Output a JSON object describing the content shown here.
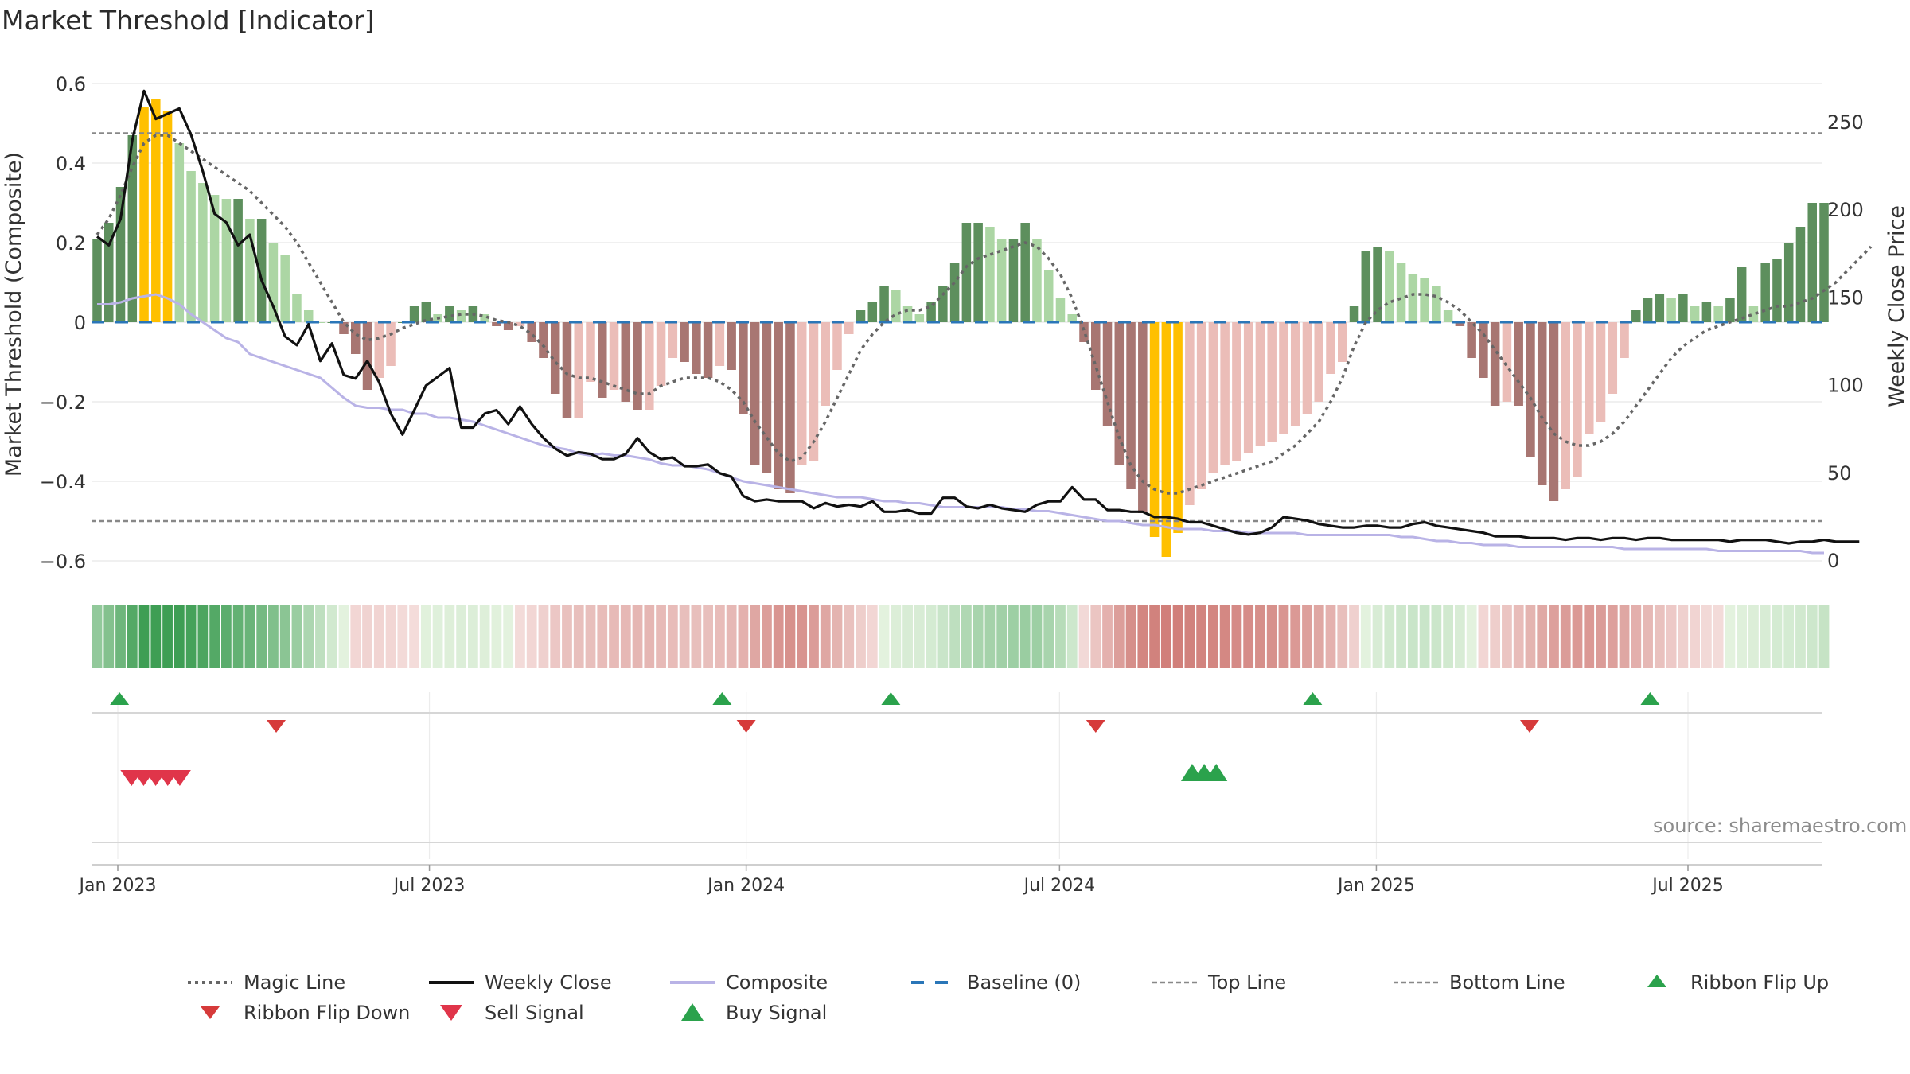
{
  "title": "Market Threshold [Indicator]",
  "source": "source: sharemaestro.com",
  "colors": {
    "magic": "#666666",
    "close": "#111111",
    "composite": "#b9b3e6",
    "baseline": "#2a76b8",
    "threshold": "#888888",
    "extreme": "#ffc000",
    "pos_strong": "#5d8f5d",
    "pos_light": "#acd6a4",
    "neg_strong": "#a87672",
    "neg_light": "#ebbdb8",
    "up_tri": "#2ba24c",
    "down_tri": "#d63a3a",
    "sell": "#e0354a",
    "grid": "#e6e6e6"
  },
  "chart_data": {
    "type": "bar+line",
    "title": "Market Threshold [Indicator]",
    "ylabel": "Market Threshold (Composite)",
    "y2label": "Weekly Close Price",
    "ylim": [
      -0.62,
      0.63
    ],
    "y2lim": [
      0,
      275
    ],
    "yticks": [
      "0.6",
      "0.4",
      "0.2",
      "0",
      "−0.2",
      "−0.4",
      "−0.6"
    ],
    "y2ticks": [
      "250",
      "200",
      "150",
      "100",
      "50",
      "0"
    ],
    "xticks": [
      "Jan 2023",
      "Jul 2023",
      "Jan 2024",
      "Jul 2024",
      "Jan 2025",
      "Jul 2025"
    ],
    "x_start": "2022-12-19",
    "top_line": 0.475,
    "bottom_line": -0.5,
    "baseline": 0,
    "threshold_bars": [
      0.21,
      0.25,
      0.34,
      0.47,
      0.54,
      0.56,
      0.53,
      0.45,
      0.38,
      0.35,
      0.32,
      0.31,
      0.31,
      0.26,
      0.26,
      0.2,
      0.17,
      0.07,
      0.03,
      0,
      0,
      -0.03,
      -0.08,
      -0.17,
      -0.14,
      -0.11,
      0,
      0.04,
      0.05,
      0.02,
      0.04,
      0.03,
      0.04,
      0.02,
      -0.01,
      -0.02,
      -0.01,
      -0.05,
      -0.09,
      -0.18,
      -0.24,
      -0.24,
      -0.15,
      -0.19,
      -0.17,
      -0.2,
      -0.22,
      -0.22,
      -0.16,
      -0.09,
      -0.1,
      -0.13,
      -0.14,
      -0.11,
      -0.12,
      -0.23,
      -0.36,
      -0.38,
      -0.42,
      -0.43,
      -0.36,
      -0.35,
      -0.21,
      -0.12,
      -0.03,
      0.03,
      0.05,
      0.09,
      0.08,
      0.04,
      0.02,
      0.05,
      0.09,
      0.15,
      0.25,
      0.25,
      0.24,
      0.21,
      0.21,
      0.25,
      0.21,
      0.13,
      0.06,
      0.02,
      -0.05,
      -0.17,
      -0.26,
      -0.36,
      -0.42,
      -0.48,
      -0.54,
      -0.59,
      -0.53,
      -0.46,
      -0.42,
      -0.38,
      -0.36,
      -0.35,
      -0.33,
      -0.31,
      -0.3,
      -0.28,
      -0.26,
      -0.23,
      -0.2,
      -0.13,
      -0.1,
      0.04,
      0.18,
      0.19,
      0.18,
      0.15,
      0.12,
      0.11,
      0.09,
      0.03,
      -0.01,
      -0.09,
      -0.14,
      -0.21,
      -0.2,
      -0.21,
      -0.34,
      -0.41,
      -0.45,
      -0.42,
      -0.39,
      -0.28,
      -0.25,
      -0.18,
      -0.09,
      0.03,
      0.06,
      0.07,
      0.06,
      0.07,
      0.04,
      0.05,
      0.04,
      0.06,
      0.14,
      0.04,
      0.15,
      0.16,
      0.2,
      0.24,
      0.3,
      0.3
    ],
    "weekly_close": [
      185,
      180,
      195,
      240,
      268,
      252,
      255,
      258,
      243,
      222,
      198,
      193,
      180,
      186,
      160,
      145,
      128,
      123,
      135,
      114,
      124,
      106,
      104,
      114,
      102,
      84,
      72,
      86,
      100,
      105,
      110,
      76,
      76,
      84,
      86,
      78,
      88,
      78,
      70,
      64,
      60,
      62,
      61,
      58,
      58,
      61,
      70,
      62,
      58,
      59,
      54,
      54,
      55,
      50,
      48,
      37,
      34,
      35,
      34,
      34,
      34,
      30,
      33,
      31,
      32,
      31,
      34,
      28,
      28,
      29,
      27,
      27,
      36,
      36,
      31,
      30,
      32,
      30,
      29,
      28,
      32,
      34,
      34,
      42,
      35,
      35,
      29,
      29,
      28,
      28,
      25,
      25,
      24,
      22,
      22,
      20,
      18,
      16,
      15,
      16,
      19,
      25,
      24,
      23,
      21,
      20,
      19,
      19,
      20,
      20,
      19,
      19,
      21,
      22,
      20,
      19,
      18,
      17,
      16,
      14,
      14,
      14,
      13,
      13,
      13,
      12,
      13,
      13,
      12,
      13,
      13,
      12,
      13,
      13,
      12,
      12,
      12,
      12,
      12,
      11,
      12,
      12,
      12,
      11,
      10,
      11,
      11,
      12,
      11,
      11,
      11
    ],
    "composite": [
      0.045,
      0.045,
      0.05,
      0.06,
      0.065,
      0.07,
      0.06,
      0.045,
      0.02,
      0,
      -0.02,
      -0.04,
      -0.05,
      -0.08,
      -0.09,
      -0.1,
      -0.11,
      -0.12,
      -0.13,
      -0.14,
      -0.165,
      -0.19,
      -0.21,
      -0.215,
      -0.215,
      -0.22,
      -0.22,
      -0.23,
      -0.23,
      -0.24,
      -0.24,
      -0.245,
      -0.25,
      -0.26,
      -0.27,
      -0.28,
      -0.29,
      -0.3,
      -0.31,
      -0.315,
      -0.32,
      -0.33,
      -0.335,
      -0.33,
      -0.335,
      -0.335,
      -0.34,
      -0.345,
      -0.355,
      -0.36,
      -0.36,
      -0.365,
      -0.37,
      -0.38,
      -0.39,
      -0.4,
      -0.405,
      -0.41,
      -0.415,
      -0.42,
      -0.425,
      -0.43,
      -0.435,
      -0.44,
      -0.44,
      -0.44,
      -0.445,
      -0.45,
      -0.45,
      -0.455,
      -0.455,
      -0.46,
      -0.465,
      -0.465,
      -0.465,
      -0.465,
      -0.465,
      -0.465,
      -0.47,
      -0.47,
      -0.475,
      -0.475,
      -0.48,
      -0.485,
      -0.49,
      -0.495,
      -0.5,
      -0.5,
      -0.505,
      -0.51,
      -0.51,
      -0.515,
      -0.52,
      -0.52,
      -0.52,
      -0.525,
      -0.525,
      -0.525,
      -0.53,
      -0.53,
      -0.53,
      -0.53,
      -0.53,
      -0.535,
      -0.535,
      -0.535,
      -0.535,
      -0.535,
      -0.535,
      -0.535,
      -0.535,
      -0.54,
      -0.54,
      -0.545,
      -0.55,
      -0.55,
      -0.555,
      -0.555,
      -0.56,
      -0.56,
      -0.56,
      -0.565,
      -0.565,
      -0.565,
      -0.565,
      -0.565,
      -0.565,
      -0.565,
      -0.565,
      -0.565,
      -0.57,
      -0.57,
      -0.57,
      -0.57,
      -0.57,
      -0.57,
      -0.57,
      -0.57,
      -0.575,
      -0.575,
      -0.575,
      -0.575,
      -0.575,
      -0.575,
      -0.575,
      -0.575,
      -0.58,
      -0.58
    ],
    "magic_line": [
      0.22,
      0.26,
      0.32,
      0.39,
      0.45,
      0.47,
      0.47,
      0.45,
      0.43,
      0.41,
      0.39,
      0.37,
      0.35,
      0.33,
      0.3,
      0.27,
      0.24,
      0.2,
      0.15,
      0.1,
      0.05,
      0,
      -0.03,
      -0.045,
      -0.04,
      -0.03,
      -0.015,
      -0.005,
      0.005,
      0.01,
      0.015,
      0.02,
      0.02,
      0.015,
      0.005,
      0,
      -0.01,
      -0.03,
      -0.06,
      -0.1,
      -0.13,
      -0.14,
      -0.14,
      -0.15,
      -0.16,
      -0.17,
      -0.18,
      -0.18,
      -0.16,
      -0.15,
      -0.14,
      -0.14,
      -0.14,
      -0.15,
      -0.17,
      -0.2,
      -0.25,
      -0.29,
      -0.33,
      -0.35,
      -0.34,
      -0.3,
      -0.25,
      -0.19,
      -0.13,
      -0.07,
      -0.03,
      0,
      0.02,
      0.03,
      0.03,
      0.04,
      0.07,
      0.1,
      0.14,
      0.16,
      0.17,
      0.18,
      0.19,
      0.2,
      0.19,
      0.16,
      0.12,
      0.06,
      -0.02,
      -0.11,
      -0.2,
      -0.29,
      -0.36,
      -0.4,
      -0.42,
      -0.43,
      -0.43,
      -0.42,
      -0.41,
      -0.4,
      -0.39,
      -0.38,
      -0.37,
      -0.36,
      -0.35,
      -0.33,
      -0.31,
      -0.28,
      -0.25,
      -0.2,
      -0.14,
      -0.06,
      0,
      0.03,
      0.05,
      0.06,
      0.07,
      0.07,
      0.065,
      0.05,
      0.03,
      0,
      -0.03,
      -0.07,
      -0.11,
      -0.15,
      -0.19,
      -0.24,
      -0.28,
      -0.3,
      -0.31,
      -0.31,
      -0.3,
      -0.28,
      -0.25,
      -0.21,
      -0.17,
      -0.13,
      -0.09,
      -0.06,
      -0.04,
      -0.02,
      -0.01,
      0,
      0.01,
      0.02,
      0.03,
      0.04,
      0.04,
      0.05,
      0.06,
      0.08,
      0.1,
      0.13,
      0.16,
      0.19
    ],
    "ribbon_flip_up": [
      "2023-01-02",
      "2023-12-18",
      "2024-03-25",
      "2024-11-25",
      "2025-06-09"
    ],
    "ribbon_flip_down": [
      "2023-04-03",
      "2024-01-01",
      "2024-07-22",
      "2025-03-31"
    ],
    "sell_signals": [
      "2023-01-09",
      "2023-01-16",
      "2023-01-23",
      "2023-01-30",
      "2023-02-06"
    ],
    "buy_signals": [
      "2024-09-16",
      "2024-09-23",
      "2024-09-30"
    ]
  },
  "legend": [
    {
      "name": "Magic Line",
      "icon": "dotted-line-icon"
    },
    {
      "name": "Weekly Close",
      "icon": "solid-line-icon"
    },
    {
      "name": "Composite",
      "icon": "lavender-line-icon"
    },
    {
      "name": "Baseline (0)",
      "icon": "dashed-line-icon"
    },
    {
      "name": "Top Line",
      "icon": "dotted-gray-line-icon"
    },
    {
      "name": "Bottom Line",
      "icon": "dotted-gray-line-icon"
    },
    {
      "name": "Ribbon Flip Up",
      "icon": "triangle-up-icon"
    },
    {
      "name": "Ribbon Flip Down",
      "icon": "triangle-down-icon"
    },
    {
      "name": "Sell Signal",
      "icon": "triangle-down-icon"
    },
    {
      "name": "Buy Signal",
      "icon": "triangle-up-icon"
    }
  ]
}
